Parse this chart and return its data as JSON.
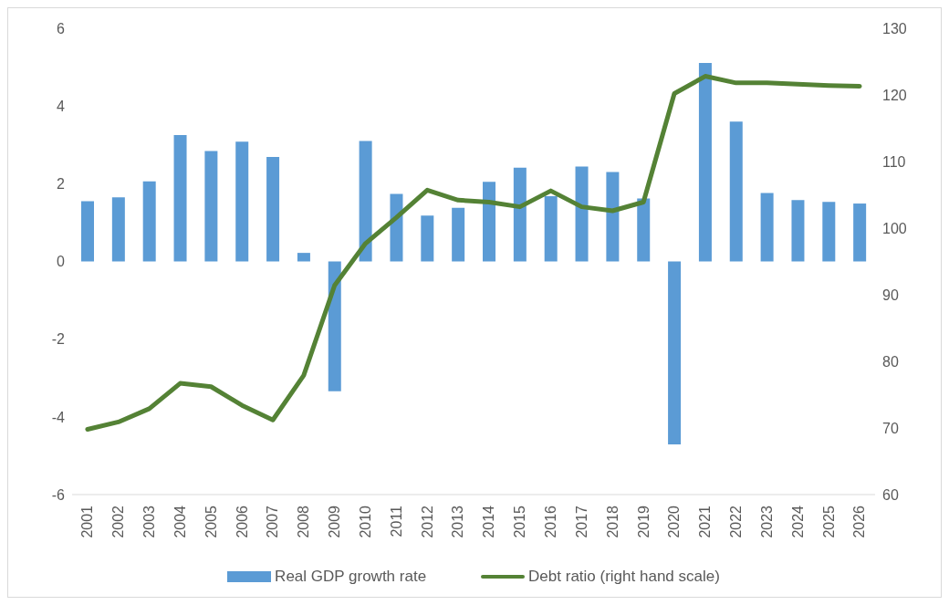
{
  "chart_data": {
    "type": "bar",
    "categories": [
      "2001",
      "2002",
      "2003",
      "2004",
      "2005",
      "2006",
      "2007",
      "2008",
      "2009",
      "2010",
      "2011",
      "2012",
      "2013",
      "2014",
      "2015",
      "2016",
      "2017",
      "2018",
      "2019",
      "2020",
      "2021",
      "2022",
      "2023",
      "2024",
      "2025",
      "2026"
    ],
    "series": [
      {
        "name": "Real GDP growth rate",
        "color": "#5b9bd5",
        "values": [
          1.55,
          1.65,
          2.06,
          3.25,
          2.84,
          3.08,
          2.69,
          0.22,
          -3.34,
          3.1,
          1.74,
          1.18,
          1.38,
          2.05,
          2.41,
          1.68,
          2.44,
          2.3,
          1.62,
          -4.71,
          5.11,
          3.6,
          1.76,
          1.58,
          1.53,
          1.49
        ]
      },
      {
        "name": "Debt ratio (right hand scale)",
        "type": "line",
        "axis": "y2",
        "color": "#548235",
        "values": [
          69.8,
          70.9,
          72.9,
          76.7,
          76.2,
          73.4,
          71.2,
          77.9,
          91.4,
          97.7,
          101.6,
          105.7,
          104.2,
          103.9,
          103.2,
          105.6,
          103.2,
          102.6,
          103.9,
          120.2,
          122.8,
          121.8,
          121.8,
          121.6,
          121.4,
          121.3
        ]
      }
    ],
    "ylim": [
      -6,
      6
    ],
    "yticks": [
      -6,
      -4,
      -2,
      0,
      2,
      4,
      6
    ],
    "y2lim": [
      60,
      130
    ],
    "y2ticks": [
      60,
      70,
      80,
      90,
      100,
      110,
      120,
      130
    ],
    "legend": "bottom"
  }
}
